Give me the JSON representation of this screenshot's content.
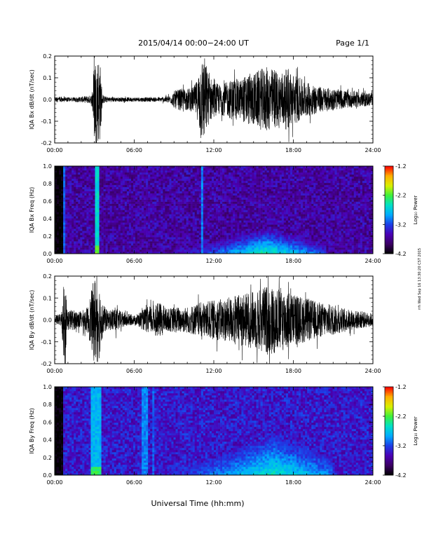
{
  "header": {
    "date_range": "2015/04/14  00:00−24:00 UT",
    "page": "Page 1/1"
  },
  "footer": {
    "xlabel": "Universal Time (hh:mm)",
    "timestamp": "rrh Wed Sep 16 13:30:20 CST 2015"
  },
  "colors": {
    "waveform": "#000000",
    "colormap": [
      "#000000",
      "#3a0062",
      "#4b00b4",
      "#1d3ce6",
      "#00aaff",
      "#00e0c8",
      "#3cf03c",
      "#d8f000",
      "#ffb000",
      "#ff0000"
    ]
  },
  "chart_data": [
    {
      "type": "line",
      "panel": "bx-waveform",
      "ylabel": "IQA Bx dB/dt (nT/sec)",
      "ylim": [
        -0.2,
        0.2
      ],
      "yticks": [
        "-0.2",
        "-0.1",
        "0.0",
        "0.1",
        "0.2"
      ],
      "xlim": [
        0,
        24
      ],
      "xticks": [
        "00:00",
        "06:00",
        "12:00",
        "18:00",
        "24:00"
      ],
      "x_unit": "hours UT",
      "envelope": {
        "x": [
          0.0,
          0.5,
          1.0,
          2.0,
          2.8,
          3.0,
          3.4,
          3.6,
          4.0,
          5.0,
          6.0,
          7.0,
          8.0,
          8.8,
          9.0,
          9.5,
          10.0,
          10.5,
          10.8,
          11.0,
          11.3,
          11.6,
          12.0,
          12.5,
          13.0,
          13.5,
          14.0,
          14.5,
          15.0,
          15.5,
          16.0,
          16.5,
          17.0,
          17.5,
          18.0,
          18.5,
          19.0,
          19.5,
          20.0,
          21.0,
          22.0,
          23.0,
          24.0
        ],
        "amplitude": [
          0.012,
          0.013,
          0.01,
          0.013,
          0.02,
          0.2,
          0.2,
          0.02,
          0.012,
          0.01,
          0.01,
          0.01,
          0.01,
          0.02,
          0.04,
          0.05,
          0.05,
          0.06,
          0.1,
          0.2,
          0.2,
          0.12,
          0.08,
          0.07,
          0.08,
          0.1,
          0.09,
          0.12,
          0.12,
          0.14,
          0.15,
          0.14,
          0.13,
          0.14,
          0.12,
          0.1,
          0.08,
          0.07,
          0.06,
          0.05,
          0.04,
          0.035,
          0.03
        ]
      }
    },
    {
      "type": "heatmap",
      "panel": "bx-spectrogram",
      "ylabel": "IQA Bx Freq (Hz)",
      "ylim": [
        0.0,
        1.0
      ],
      "yticks": [
        "0.0",
        "0.2",
        "0.4",
        "0.6",
        "0.8",
        "1.0"
      ],
      "xlim": [
        0,
        24
      ],
      "xticks": [
        "00:00",
        "06:00",
        "12:00",
        "18:00",
        "24:00"
      ],
      "colorbar": {
        "label": "Log₁₀ Power",
        "range": [
          -4.2,
          -1.2
        ],
        "ticks": [
          "-1.2",
          "-2.2",
          "-3.2",
          "-4.2"
        ]
      },
      "background_log_power": -3.6,
      "low_freq_enhancements": [
        {
          "start": 9.0,
          "end": 20.5,
          "peak_time": 16.0,
          "peak_freq_top": 0.3,
          "peak_log_power": -2.4
        }
      ],
      "vertical_bands": [
        {
          "start": 0.0,
          "end": 0.7,
          "log_power": -4.2
        },
        {
          "start": 0.7,
          "end": 0.85,
          "log_power": -3.1
        },
        {
          "start": 3.0,
          "end": 3.3,
          "log_power": -2.6
        },
        {
          "start": 11.0,
          "end": 11.2,
          "log_power": -3.0
        }
      ]
    },
    {
      "type": "line",
      "panel": "by-waveform",
      "ylabel": "IQA By dB/dt (nT/sec)",
      "ylim": [
        -0.2,
        0.2
      ],
      "yticks": [
        "-0.2",
        "-0.1",
        "0.0",
        "0.1",
        "0.2"
      ],
      "xlim": [
        0,
        24
      ],
      "xticks": [
        "00:00",
        "06:00",
        "12:00",
        "18:00",
        "24:00"
      ],
      "x_unit": "hours UT",
      "envelope": {
        "x": [
          0.0,
          0.5,
          0.7,
          1.0,
          2.0,
          2.5,
          3.0,
          3.3,
          3.6,
          4.0,
          4.5,
          5.0,
          5.5,
          6.0,
          6.5,
          7.0,
          7.5,
          8.0,
          8.5,
          9.0,
          10.0,
          11.0,
          12.0,
          13.0,
          14.0,
          15.0,
          16.0,
          17.0,
          18.0,
          19.0,
          20.0,
          21.0,
          22.0,
          23.0,
          24.0
        ],
        "amplitude": [
          0.02,
          0.03,
          0.2,
          0.05,
          0.04,
          0.06,
          0.2,
          0.2,
          0.08,
          0.04,
          0.06,
          0.04,
          0.03,
          0.02,
          0.04,
          0.06,
          0.07,
          0.08,
          0.05,
          0.06,
          0.06,
          0.08,
          0.09,
          0.1,
          0.12,
          0.13,
          0.16,
          0.15,
          0.12,
          0.1,
          0.08,
          0.07,
          0.05,
          0.04,
          0.03
        ]
      }
    },
    {
      "type": "heatmap",
      "panel": "by-spectrogram",
      "ylabel": "IQA By Freq (Hz)",
      "ylim": [
        0.0,
        1.0
      ],
      "yticks": [
        "0.0",
        "0.2",
        "0.4",
        "0.6",
        "0.8",
        "1.0"
      ],
      "xlim": [
        0,
        24
      ],
      "xticks": [
        "00:00",
        "06:00",
        "12:00",
        "18:00",
        "24:00"
      ],
      "colorbar": {
        "label": "Log₁₀ Power",
        "range": [
          -4.2,
          -1.2
        ],
        "ticks": [
          "-1.2",
          "-2.2",
          "-3.2",
          "-4.2"
        ]
      },
      "background_log_power": -3.4,
      "low_freq_enhancements": [
        {
          "start": 8.5,
          "end": 21.0,
          "peak_time": 16.5,
          "peak_freq_top": 0.45,
          "peak_log_power": -2.5
        }
      ],
      "vertical_bands": [
        {
          "start": 0.0,
          "end": 0.7,
          "log_power": -4.2
        },
        {
          "start": 2.8,
          "end": 3.5,
          "log_power": -2.8
        },
        {
          "start": 6.5,
          "end": 7.0,
          "log_power": -3.0
        },
        {
          "start": 7.3,
          "end": 7.6,
          "log_power": -3.1
        }
      ]
    }
  ]
}
